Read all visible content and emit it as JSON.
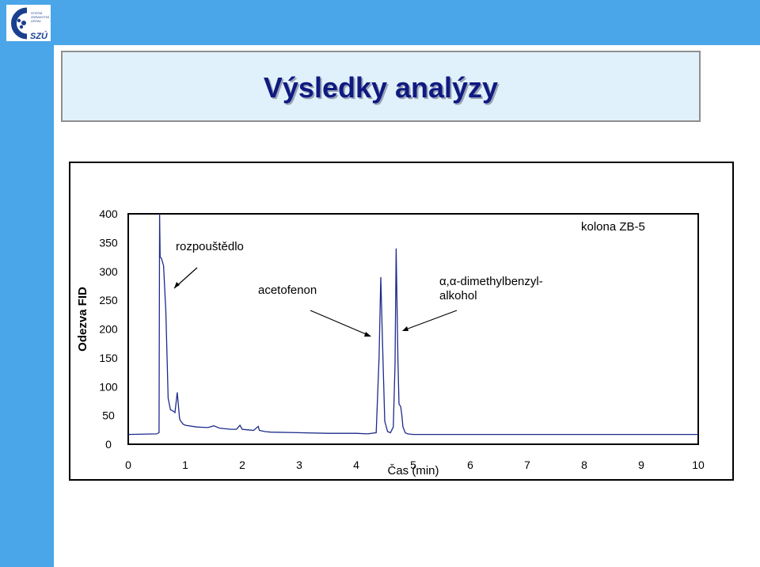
{
  "header": {
    "logo_text": "SZÚ",
    "logo_lines": [
      "STÁTNÍ",
      "ZDRAVOTNÍ",
      "ÚSTAV"
    ]
  },
  "slide": {
    "title": "Výsledky analýzy"
  },
  "colors": {
    "band": "#4aa6e8",
    "title_text": "#0f1a80",
    "trace": "#1c2b8a",
    "title_box": "#e1f1fc"
  },
  "chart_data": {
    "type": "line",
    "xlabel": "Čas (min)",
    "ylabel": "Odezva FID",
    "xlim": [
      0,
      10
    ],
    "ylim": [
      0,
      400
    ],
    "x_ticks": [
      0,
      1,
      2,
      3,
      4,
      5,
      6,
      7,
      8,
      9,
      10
    ],
    "y_ticks": [
      0,
      50,
      100,
      150,
      200,
      250,
      300,
      350,
      400
    ],
    "grid": false,
    "series": [
      {
        "x": [
          0,
          0.5,
          0.54,
          0.55,
          0.56,
          0.58,
          0.62,
          0.66,
          0.7,
          0.74,
          0.78,
          0.82,
          0.86,
          0.9,
          0.92,
          0.94,
          0.96,
          1.0,
          1.2,
          1.4,
          1.5,
          1.6,
          1.7,
          1.8,
          1.9,
          1.96,
          2.0,
          2.1,
          2.2,
          2.28,
          2.3,
          2.4,
          2.5,
          3.0,
          3.5,
          4.0,
          4.2,
          4.35,
          4.4,
          4.43,
          4.46,
          4.5,
          4.55,
          4.6,
          4.65,
          4.68,
          4.7,
          4.73,
          4.75,
          4.78,
          4.8,
          4.82,
          4.86,
          4.9,
          5.0,
          5.5,
          6.0,
          7.0,
          8.0,
          9.0,
          10.0
        ],
        "y": [
          17,
          18,
          20,
          400,
          325,
          323,
          310,
          230,
          80,
          60,
          58,
          55,
          90,
          45,
          40,
          38,
          35,
          33,
          30,
          29,
          32,
          28,
          27,
          26,
          26,
          33,
          26,
          25,
          24,
          31,
          24,
          22,
          21,
          20,
          19,
          19,
          18,
          20,
          150,
          290,
          180,
          40,
          22,
          20,
          30,
          140,
          340,
          150,
          70,
          65,
          50,
          30,
          20,
          18,
          17,
          17,
          17,
          17,
          17,
          17,
          17
        ]
      }
    ],
    "annotations": {
      "solvent": "rozpouštědlo",
      "peak1": "acetofenon",
      "peak2_line1": "α,α-dimethylbenzyl-",
      "peak2_line2": "alkohol",
      "column": "kolona ZB-5"
    }
  }
}
